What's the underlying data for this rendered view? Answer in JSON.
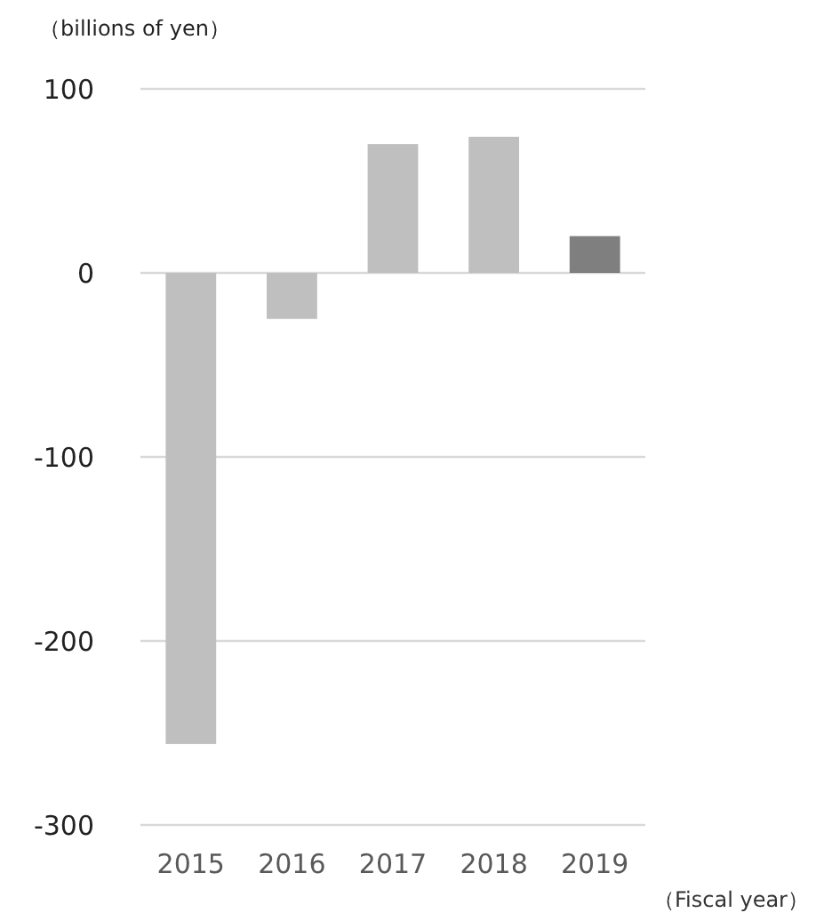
{
  "chart_data": {
    "type": "bar",
    "ylabel": "（billions of yen）",
    "xlabel": "（Fiscal year）",
    "categories": [
      "2015",
      "2016",
      "2017",
      "2018",
      "2019"
    ],
    "values": [
      -256,
      -25,
      70,
      74,
      20
    ],
    "colors": [
      "#bfbfbf",
      "#bfbfbf",
      "#bfbfbf",
      "#bfbfbf",
      "#7f7f7f"
    ],
    "ylim": [
      -300,
      100
    ],
    "yticks": [
      -300,
      -200,
      -100,
      0,
      100
    ],
    "grid": "y"
  }
}
